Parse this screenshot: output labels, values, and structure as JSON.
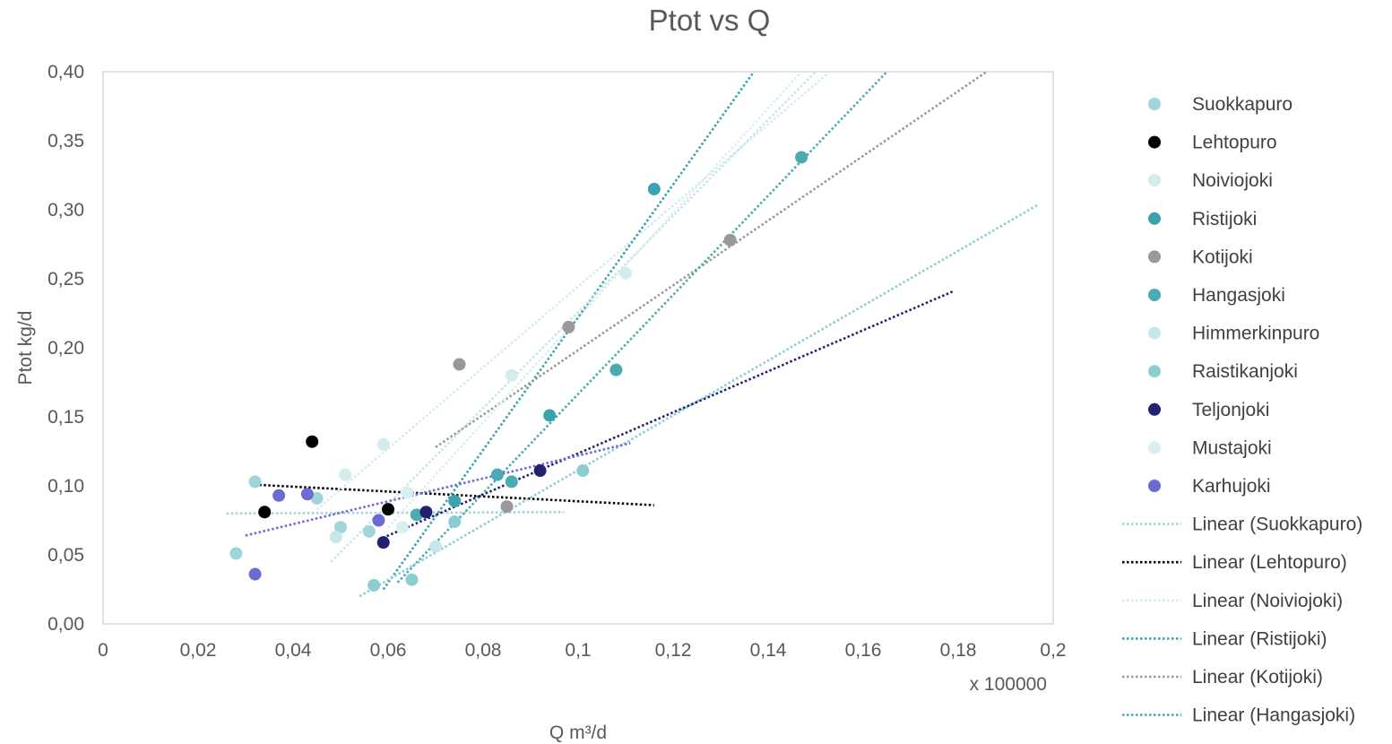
{
  "chart_data": {
    "type": "scatter",
    "title": "Ptot vs Q",
    "xlabel": "Q m³/d",
    "ylabel": "Ptot kg/d",
    "x_multiplier_label": "x 100000",
    "xlim": [
      0,
      0.2
    ],
    "ylim": [
      0,
      0.4
    ],
    "x_tick_labels": [
      "0",
      "0,02",
      "0,04",
      "0,06",
      "0,08",
      "0,1",
      "0,12",
      "0,14",
      "0,16",
      "0,18",
      "0,2"
    ],
    "y_tick_labels": [
      "0,00",
      "0,05",
      "0,10",
      "0,15",
      "0,20",
      "0,25",
      "0,30",
      "0,35",
      "0,40"
    ],
    "legend_position": "right",
    "series": [
      {
        "name": "Suokkapuro",
        "color": "#9fd4d9",
        "points": [
          [
            0.028,
            0.051
          ],
          [
            0.032,
            0.103
          ],
          [
            0.045,
            0.091
          ],
          [
            0.05,
            0.07
          ],
          [
            0.056,
            0.067
          ]
        ],
        "trendline": {
          "name": "Linear (Suokkapuro)",
          "x": [
            0.026,
            0.097
          ],
          "y": [
            0.08,
            0.081
          ]
        }
      },
      {
        "name": "Lehtopuro",
        "color": "#000000",
        "points": [
          [
            0.034,
            0.081
          ],
          [
            0.044,
            0.132
          ],
          [
            0.06,
            0.083
          ]
        ],
        "trendline": {
          "name": "Linear (Lehtopuro)",
          "x": [
            0.031,
            0.116
          ],
          "y": [
            0.101,
            0.086
          ]
        }
      },
      {
        "name": "Noiviojoki",
        "color": "#d4ecee",
        "points": [
          [
            0.051,
            0.108
          ],
          [
            0.059,
            0.13
          ],
          [
            0.086,
            0.18
          ],
          [
            0.11,
            0.254
          ]
        ],
        "trendline": {
          "name": "Linear (Noiviojoki)",
          "x": [
            0.045,
            0.153
          ],
          "y": [
            0.083,
            0.4
          ]
        }
      },
      {
        "name": "Ristijoki",
        "color": "#3aa3ad",
        "points": [
          [
            0.074,
            0.089
          ],
          [
            0.094,
            0.151
          ],
          [
            0.116,
            0.315
          ]
        ],
        "trendline": {
          "name": "Linear (Ristijoki)",
          "x": [
            0.059,
            0.137
          ],
          "y": [
            0.025,
            0.4
          ]
        }
      },
      {
        "name": "Kotijoki",
        "color": "#999999",
        "points": [
          [
            0.075,
            0.188
          ],
          [
            0.085,
            0.085
          ],
          [
            0.098,
            0.215
          ],
          [
            0.132,
            0.278
          ]
        ],
        "trendline": {
          "name": "Linear (Kotijoki)",
          "x": [
            0.07,
            0.186
          ],
          "y": [
            0.128,
            0.4
          ]
        }
      },
      {
        "name": "Hangasjoki",
        "color": "#4aabb3",
        "points": [
          [
            0.066,
            0.079
          ],
          [
            0.083,
            0.108
          ],
          [
            0.086,
            0.103
          ],
          [
            0.108,
            0.184
          ],
          [
            0.147,
            0.338
          ]
        ],
        "trendline": {
          "name": "Linear (Hangasjoki)",
          "x": [
            0.062,
            0.165
          ],
          "y": [
            0.03,
            0.4
          ]
        }
      },
      {
        "name": "Himmerkinpuro",
        "color": "#c6e6e9",
        "points": [
          [
            0.049,
            0.063
          ],
          [
            0.07,
            0.056
          ]
        ],
        "trendline": {
          "name": "Linear (Himmerkinpuro)",
          "x": [
            0.048,
            0.15
          ],
          "y": [
            0.045,
            0.4
          ]
        }
      },
      {
        "name": "Raistikanjoki",
        "color": "#8ccdd2",
        "points": [
          [
            0.057,
            0.028
          ],
          [
            0.065,
            0.032
          ],
          [
            0.074,
            0.074
          ],
          [
            0.101,
            0.111
          ]
        ],
        "trendline": {
          "name": "Linear (Raistikanjoki)",
          "x": [
            0.054,
            0.197
          ],
          "y": [
            0.02,
            0.304
          ]
        }
      },
      {
        "name": "Teljonjoki",
        "color": "#22226e",
        "points": [
          [
            0.059,
            0.059
          ],
          [
            0.068,
            0.081
          ],
          [
            0.092,
            0.111
          ]
        ],
        "trendline": {
          "name": "Linear (Teljonjoki)",
          "x": [
            0.058,
            0.179
          ],
          "y": [
            0.061,
            0.241
          ]
        }
      },
      {
        "name": "Mustajoki",
        "color": "#daeff0",
        "points": [
          [
            0.064,
            0.095
          ],
          [
            0.063,
            0.07
          ]
        ],
        "trendline": {
          "name": "Linear (Mustajoki)",
          "x": [
            0.06,
            0.147
          ],
          "y": [
            0.07,
            0.4
          ]
        }
      },
      {
        "name": "Karhujoki",
        "color": "#6b6bd1",
        "points": [
          [
            0.032,
            0.036
          ],
          [
            0.037,
            0.093
          ],
          [
            0.043,
            0.094
          ],
          [
            0.058,
            0.075
          ]
        ],
        "trendline": {
          "name": "Linear (Karhujoki)",
          "x": [
            0.03,
            0.111
          ],
          "y": [
            0.064,
            0.131
          ]
        }
      }
    ],
    "legend_entries": [
      {
        "label": "Suokkapuro",
        "kind": "marker",
        "color": "#9fd4d9"
      },
      {
        "label": "Lehtopuro",
        "kind": "marker",
        "color": "#000000"
      },
      {
        "label": "Noiviojoki",
        "kind": "marker",
        "color": "#d4ecee"
      },
      {
        "label": "Ristijoki",
        "kind": "marker",
        "color": "#3aa3ad"
      },
      {
        "label": "Kotijoki",
        "kind": "marker",
        "color": "#999999"
      },
      {
        "label": "Hangasjoki",
        "kind": "marker",
        "color": "#4aabb3"
      },
      {
        "label": "Himmerkinpuro",
        "kind": "marker",
        "color": "#c6e6e9"
      },
      {
        "label": "Raistikanjoki",
        "kind": "marker",
        "color": "#8ccdd2"
      },
      {
        "label": "Teljonjoki",
        "kind": "marker",
        "color": "#22226e"
      },
      {
        "label": "Mustajoki",
        "kind": "marker",
        "color": "#daeff0"
      },
      {
        "label": "Karhujoki",
        "kind": "marker",
        "color": "#6b6bd1"
      },
      {
        "label": "Linear (Suokkapuro)",
        "kind": "line",
        "color": "#9fd4d9"
      },
      {
        "label": "Linear (Lehtopuro)",
        "kind": "line",
        "color": "#000000"
      },
      {
        "label": "Linear (Noiviojoki)",
        "kind": "line",
        "color": "#d4ecee"
      },
      {
        "label": "Linear (Ristijoki)",
        "kind": "line",
        "color": "#3aa3ad"
      },
      {
        "label": "Linear (Kotijoki)",
        "kind": "line",
        "color": "#999999"
      },
      {
        "label": "Linear (Hangasjoki)",
        "kind": "line",
        "color": "#4aabb3"
      }
    ]
  }
}
